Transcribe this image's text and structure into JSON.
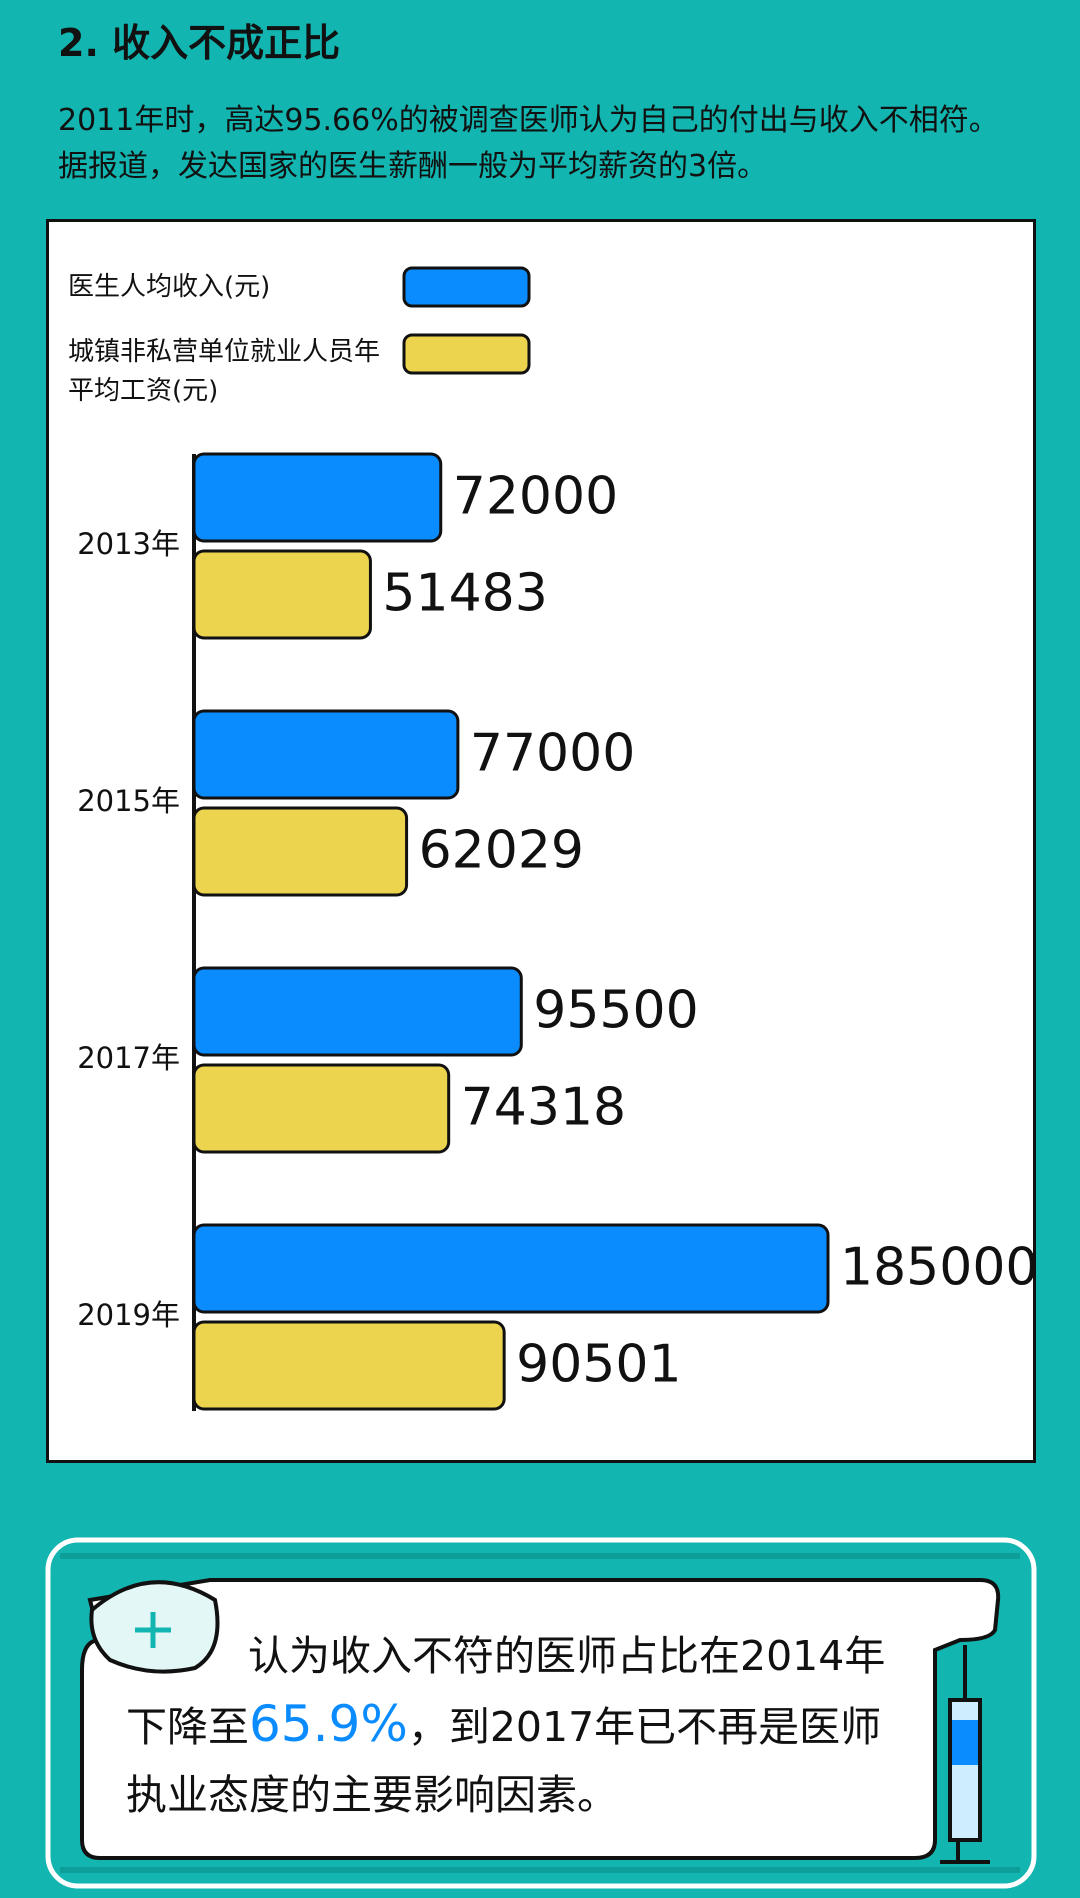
{
  "header": {
    "title": "2. 收入不成正比",
    "intro": "2011年时，高达95.66%的被调查医师认为自己的付出与收入不相符。据报道，发达国家的医生薪酬一般为平均薪资的3倍。"
  },
  "chart_data": {
    "type": "bar",
    "orientation": "horizontal",
    "categories": [
      "2013年",
      "2015年",
      "2017年",
      "2019年"
    ],
    "series": [
      {
        "name": "医生人均收入(元)",
        "color": "#0a8cff",
        "values": [
          72000,
          77000,
          95500,
          185000
        ]
      },
      {
        "name": "城镇非私营单位就业人员年平均工资(元)",
        "color": "#ecd44f",
        "values": [
          51483,
          62029,
          74318,
          90501
        ]
      }
    ],
    "xlim": [
      0,
      185000
    ],
    "legend": "top-left"
  },
  "callout": {
    "before": "认为收入不符的医师占比在2014年下降至",
    "highlight": "65.9%",
    "after": "，到2017年已不再是医师执业态度的主要影响因素。"
  }
}
